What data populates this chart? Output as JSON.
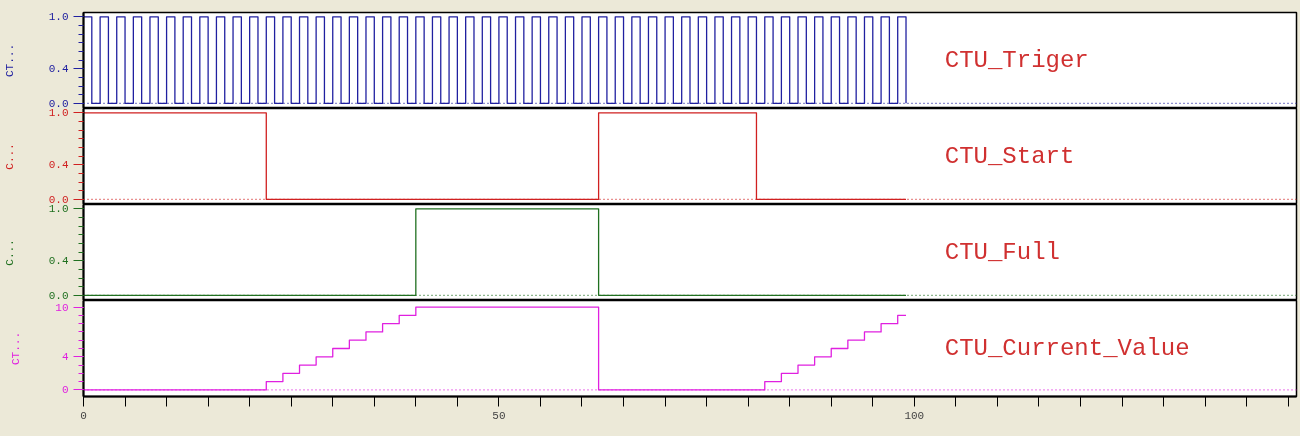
{
  "chart_data": [
    {
      "type": "step",
      "ylabel": "CT...",
      "xlim": [
        0,
        146
      ],
      "ylim": [
        -0.06,
        1.05
      ],
      "yticks": [
        {
          "value": 0,
          "label": "0.0"
        },
        {
          "value": 0.4,
          "label": "0.4"
        },
        {
          "value": 1,
          "label": "1.0"
        }
      ],
      "tick_labels": "y",
      "grid": false,
      "ref_lines": [
        {
          "axis": "y",
          "value": 0,
          "line_style": "dotted",
          "color": "#2020a0"
        }
      ],
      "series": [
        {
          "name": "CTU_Triger",
          "color": "#2020a0",
          "x": [
            0,
            1,
            2,
            3,
            4,
            5,
            6,
            7,
            8,
            9,
            10,
            11,
            12,
            13,
            14,
            15,
            16,
            17,
            18,
            19,
            20,
            21,
            22,
            23,
            24,
            25,
            26,
            27,
            28,
            29,
            30,
            31,
            32,
            33,
            34,
            35,
            36,
            37,
            38,
            39,
            40,
            41,
            42,
            43,
            44,
            45,
            46,
            47,
            48,
            49,
            50,
            51,
            52,
            53,
            54,
            55,
            56,
            57,
            58,
            59,
            60,
            61,
            62,
            63,
            64,
            65,
            66,
            67,
            68,
            69,
            70,
            71,
            72,
            73,
            74,
            75,
            76,
            77,
            78,
            79,
            80,
            81,
            82,
            83,
            84,
            85,
            86,
            87,
            88,
            89,
            90,
            91,
            92,
            93,
            94,
            95,
            96,
            97,
            98,
            99
          ],
          "values": [
            1,
            0,
            1,
            0,
            1,
            0,
            1,
            0,
            1,
            0,
            1,
            0,
            1,
            0,
            1,
            0,
            1,
            0,
            1,
            0,
            1,
            0,
            1,
            0,
            1,
            0,
            1,
            0,
            1,
            0,
            1,
            0,
            1,
            0,
            1,
            0,
            1,
            0,
            1,
            0,
            1,
            0,
            1,
            0,
            1,
            0,
            1,
            0,
            1,
            0,
            1,
            0,
            1,
            0,
            1,
            0,
            1,
            0,
            1,
            0,
            1,
            0,
            1,
            0,
            1,
            0,
            1,
            0,
            1,
            0,
            1,
            0,
            1,
            0,
            1,
            0,
            1,
            0,
            1,
            0,
            1,
            0,
            1,
            0,
            1,
            0,
            1,
            0,
            1,
            0,
            1,
            0,
            1,
            0,
            1,
            0,
            1,
            0,
            1,
            0
          ]
        }
      ]
    },
    {
      "type": "step",
      "ylabel": "C...",
      "xlim": [
        0,
        146
      ],
      "ylim": [
        -0.06,
        1.05
      ],
      "yticks": [
        {
          "value": 0,
          "label": "0.0"
        },
        {
          "value": 0.4,
          "label": "0.4"
        },
        {
          "value": 1,
          "label": "1.0"
        }
      ],
      "tick_labels": "y",
      "grid": false,
      "ref_lines": [
        {
          "axis": "y",
          "value": 0,
          "line_style": "dotted",
          "color": "#d02020"
        }
      ],
      "series": [
        {
          "name": "CTU_Start",
          "color": "#d02020",
          "x": [
            0,
            22,
            62,
            81,
            99
          ],
          "values": [
            1,
            0,
            1,
            0,
            0
          ]
        }
      ]
    },
    {
      "type": "step",
      "ylabel": "C...",
      "xlim": [
        0,
        146
      ],
      "ylim": [
        -0.06,
        1.05
      ],
      "yticks": [
        {
          "value": 0,
          "label": "0.0"
        },
        {
          "value": 0.4,
          "label": "0.4"
        },
        {
          "value": 1,
          "label": "1.0"
        }
      ],
      "tick_labels": "y",
      "grid": false,
      "ref_lines": [
        {
          "axis": "y",
          "value": 0,
          "line_style": "dotted",
          "color": "#207020"
        }
      ],
      "series": [
        {
          "name": "CTU_Full",
          "color": "#207020",
          "x": [
            0,
            40,
            62,
            99
          ],
          "values": [
            0,
            1,
            0,
            0
          ]
        }
      ]
    },
    {
      "type": "step",
      "ylabel": "CT...",
      "xlim": [
        0,
        146
      ],
      "ylim": [
        -0.8,
        10.8
      ],
      "yticks": [
        0,
        4,
        10
      ],
      "xticks": [
        0,
        {
          "value": 5,
          "label": null
        },
        {
          "value": 10,
          "label": null
        },
        {
          "value": 15,
          "label": null
        },
        {
          "value": 20,
          "label": null
        },
        {
          "value": 25,
          "label": null
        },
        {
          "value": 30,
          "label": null
        },
        {
          "value": 35,
          "label": null
        },
        {
          "value": 40,
          "label": null
        },
        {
          "value": 45,
          "label": null
        },
        50,
        {
          "value": 55,
          "label": null
        },
        {
          "value": 60,
          "label": null
        },
        {
          "value": 65,
          "label": null
        },
        {
          "value": 70,
          "label": null
        },
        {
          "value": 75,
          "label": null
        },
        {
          "value": 80,
          "label": null
        },
        {
          "value": 85,
          "label": null
        },
        {
          "value": 90,
          "label": null
        },
        {
          "value": 95,
          "label": null
        },
        100,
        {
          "value": 105,
          "label": null
        },
        {
          "value": 110,
          "label": null
        },
        {
          "value": 115,
          "label": null
        },
        {
          "value": 120,
          "label": null
        },
        {
          "value": 125,
          "label": null
        },
        {
          "value": 130,
          "label": null
        },
        {
          "value": 135,
          "label": null
        },
        {
          "value": 140,
          "label": null
        },
        {
          "value": 145,
          "label": null
        }
      ],
      "grid": false,
      "ref_lines": [
        {
          "axis": "y",
          "value": 0,
          "line_style": "dotted",
          "color": "#e020e0"
        }
      ],
      "series": [
        {
          "name": "CTU_Current_Value",
          "color": "#e020e0",
          "x": [
            0,
            22,
            24,
            26,
            28,
            30,
            32,
            34,
            36,
            38,
            40,
            62,
            82,
            84,
            86,
            88,
            90,
            92,
            94,
            96,
            98,
            99
          ],
          "values": [
            0,
            1,
            2,
            3,
            4,
            5,
            6,
            7,
            8,
            9,
            10,
            0,
            1,
            2,
            3,
            4,
            5,
            6,
            7,
            8,
            9,
            9
          ]
        }
      ]
    }
  ]
}
